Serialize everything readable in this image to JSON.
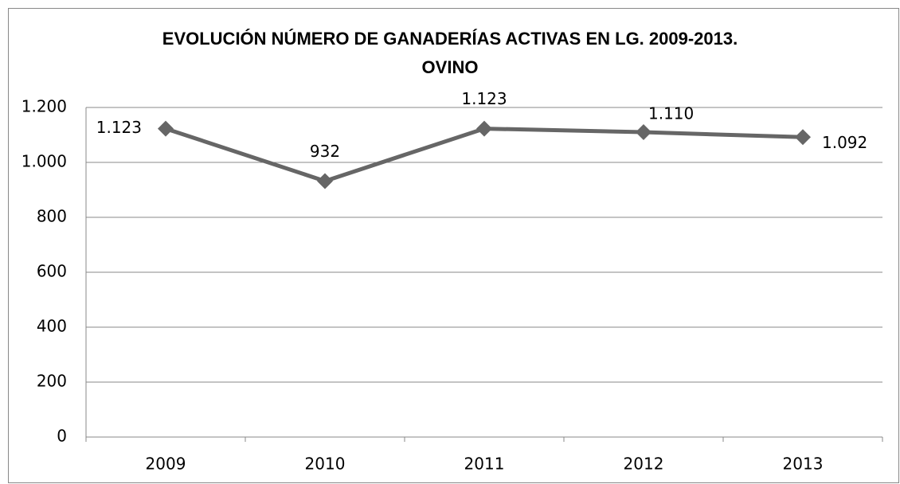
{
  "chart_data": {
    "type": "line",
    "title": [
      "EVOLUCIÓN NÚMERO DE GANADERÍAS ACTIVAS EN LG. 2009-2013.",
      "OVINO"
    ],
    "categories": [
      "2009",
      "2010",
      "2011",
      "2012",
      "2013"
    ],
    "series": [
      {
        "name": "OVINO",
        "color": "#666666",
        "values": [
          1123,
          932,
          1123,
          1110,
          1092
        ],
        "value_labels": [
          "1.123",
          "932",
          "1.123",
          "1.110",
          "1.092"
        ]
      }
    ],
    "ylim": [
      0,
      1200
    ],
    "yticks": [
      0,
      200,
      400,
      600,
      800,
      {
        "value": 1000,
        "label": "1.000"
      },
      {
        "value": 1200,
        "label": "1.200"
      }
    ],
    "grid": true
  }
}
